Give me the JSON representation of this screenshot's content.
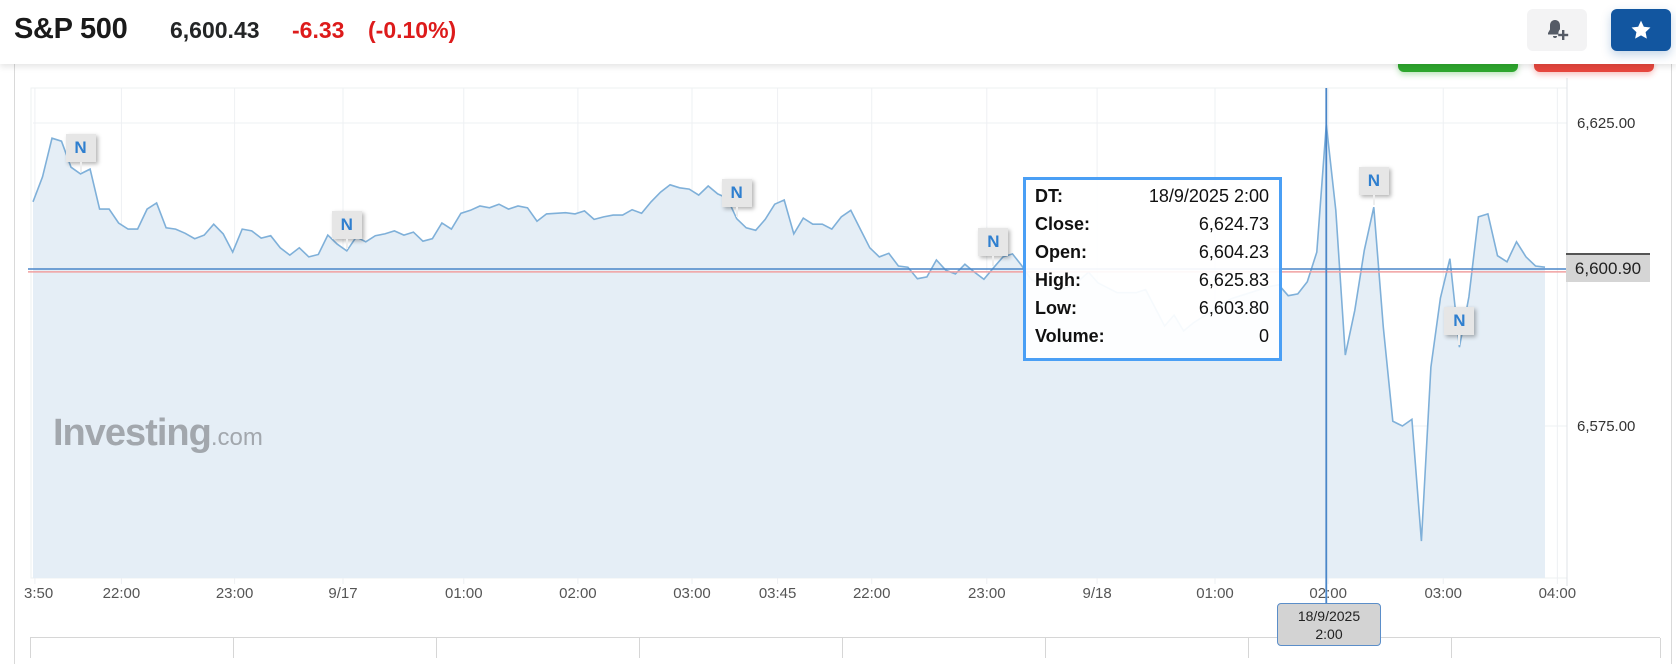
{
  "header": {
    "title": "S&P 500",
    "price": "6,600.43",
    "change": "-6.33",
    "change_pct": "(-0.10%)",
    "change_color": "#dd1b1b",
    "bell_icon": "bell-plus-icon",
    "star_icon": "star-icon",
    "star_button_color": "#1256a0"
  },
  "watermark": {
    "brand": "Investing",
    "suffix": ".com"
  },
  "tooltip": {
    "rows": [
      {
        "k": "DT:",
        "v": "18/9/2025 2:00"
      },
      {
        "k": "Close:",
        "v": "6,624.73"
      },
      {
        "k": "Open:",
        "v": "6,604.23"
      },
      {
        "k": "High:",
        "v": "6,625.83"
      },
      {
        "k": "Low:",
        "v": "6,603.80"
      },
      {
        "k": "Volume:",
        "v": "0"
      }
    ]
  },
  "current_price_label": "6,600.90",
  "crosshair_label": {
    "line1": "18/9/2025",
    "line2": "2:00"
  },
  "news_marker_label": "N",
  "chart_data": {
    "type": "area",
    "ylim": [
      6550,
      6631
    ],
    "y_ticks": [
      {
        "value": 6625,
        "label": "6,625.00"
      },
      {
        "value": 6575,
        "label": "6,575.00"
      }
    ],
    "x_ticks": [
      {
        "index": 0.2,
        "label": "3:50"
      },
      {
        "index": 9.3,
        "label": "22:00"
      },
      {
        "index": 21.2,
        "label": "23:00"
      },
      {
        "index": 32.6,
        "label": "9/17"
      },
      {
        "index": 45.3,
        "label": "01:00"
      },
      {
        "index": 57.3,
        "label": "02:00"
      },
      {
        "index": 69.3,
        "label": "03:00"
      },
      {
        "index": 78.3,
        "label": "03:45"
      },
      {
        "index": 88.2,
        "label": "22:00"
      },
      {
        "index": 100.3,
        "label": "23:00"
      },
      {
        "index": 111.9,
        "label": "9/18"
      },
      {
        "index": 124.3,
        "label": "01:00"
      },
      {
        "index": 136.2,
        "label": "02:00"
      },
      {
        "index": 148.3,
        "label": "03:00"
      },
      {
        "index": 160.3,
        "label": "04:00"
      }
    ],
    "current_price": 6600.9,
    "reference_price": 6600.43,
    "crosshair_index": 136,
    "news_marker_indices": [
      5,
      33,
      74,
      101,
      141,
      150
    ],
    "grid": true,
    "line_color": "#7fb0d9",
    "fill_color": "#e5eef6",
    "current_line_color": "#4a86c8",
    "reference_line_color": "#f0a0a0",
    "values": [
      6612.0,
      6616.1,
      6622.5,
      6622.0,
      6617.7,
      6616.6,
      6617.4,
      6610.8,
      6610.8,
      6608.5,
      6607.5,
      6607.5,
      6610.8,
      6611.8,
      6607.7,
      6607.5,
      6606.8,
      6605.9,
      6606.5,
      6608.3,
      6606.7,
      6603.7,
      6607.5,
      6607.2,
      6606.0,
      6606.4,
      6604.4,
      6603.2,
      6604.4,
      6602.9,
      6603.3,
      6606.5,
      6605.0,
      6603.9,
      6606.2,
      6605.4,
      6606.4,
      6606.7,
      6607.2,
      6606.5,
      6607.0,
      6605.5,
      6605.9,
      6608.5,
      6607.5,
      6610.1,
      6610.6,
      6611.3,
      6611.0,
      6611.6,
      6610.8,
      6611.3,
      6611.0,
      6608.8,
      6610.0,
      6610.1,
      6610.2,
      6610.0,
      6610.5,
      6609.1,
      6609.5,
      6609.8,
      6609.8,
      6610.7,
      6610.1,
      6612.0,
      6613.6,
      6614.8,
      6614.3,
      6614.1,
      6613.1,
      6614.6,
      6613.3,
      6612.6,
      6609.2,
      6607.7,
      6607.3,
      6609.1,
      6611.6,
      6612.3,
      6606.7,
      6609.3,
      6608.3,
      6608.3,
      6607.5,
      6609.5,
      6610.6,
      6607.5,
      6604.4,
      6602.9,
      6603.5,
      6601.4,
      6601.2,
      6599.3,
      6599.6,
      6602.4,
      6600.7,
      6600.1,
      6601.7,
      6600.4,
      6599.2,
      6601.1,
      6602.9,
      6603.4,
      6601.4,
      6599.1,
      6598.5,
      6598.0,
      6597.5,
      6598.0,
      6599.0,
      6600.4,
      6598.6,
      6597.8,
      6597.0,
      6597.0,
      6597.0,
      6597.5,
      6594.5,
      6591.5,
      6593.3,
      6590.7,
      6592.0,
      6593.0,
      6594.0,
      6595.0,
      6596.0,
      6596.5,
      6597.0,
      6597.5,
      6598.0,
      6598.3,
      6596.5,
      6596.8,
      6598.8,
      6603.7,
      6624.73,
      6610.6,
      6586.7,
      6594.1,
      6604.0,
      6611.1,
      6591.3,
      6575.8,
      6575.0,
      6576.1,
      6556.0,
      6584.7,
      6596.1,
      6602.6,
      6588.0,
      6596.3,
      6609.5,
      6610.0,
      6603.1,
      6602.1,
      6605.4,
      6602.9,
      6601.4,
      6601.2
    ]
  }
}
